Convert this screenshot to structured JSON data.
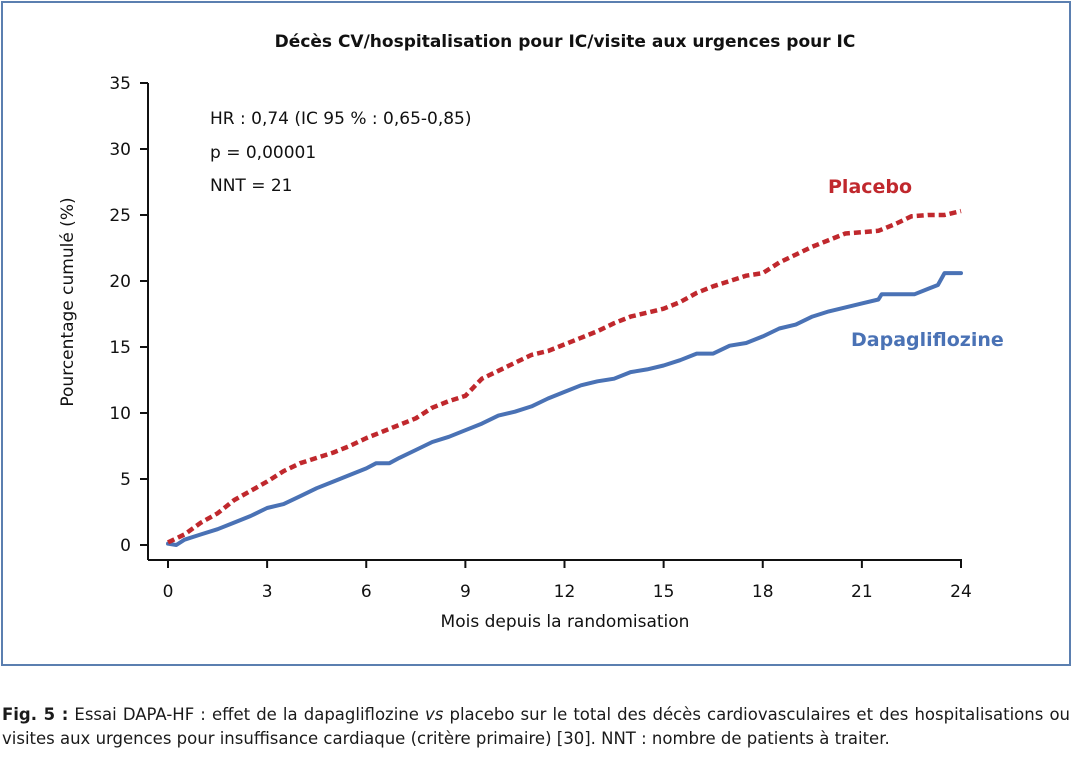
{
  "chart_data": {
    "type": "line",
    "title": "Décès CV/hospitalisation pour IC/visite aux urgences pour IC",
    "xlabel": "Mois depuis la randomisation",
    "ylabel": "Pourcentage cumulé (%)",
    "xlim": [
      0,
      24
    ],
    "ylim": [
      0,
      35
    ],
    "xticks": [
      "0",
      "3",
      "6",
      "9",
      "12",
      "15",
      "18",
      "21",
      "24"
    ],
    "yticks": [
      "0",
      "5",
      "10",
      "15",
      "20",
      "25",
      "30",
      "35"
    ],
    "grid": false,
    "legend": "inline labels",
    "annotations": [
      "HR : 0,74 (IC 95 % : 0,65-0,85)",
      "p = 0,00001",
      "NNT = 21"
    ],
    "series": [
      {
        "name": "Placebo",
        "color": "#c0282d",
        "style": "dashed",
        "points": [
          [
            0,
            0.2
          ],
          [
            0.5,
            0.8
          ],
          [
            1,
            1.7
          ],
          [
            1.5,
            2.4
          ],
          [
            2,
            3.4
          ],
          [
            2.5,
            4.1
          ],
          [
            3,
            4.8
          ],
          [
            3.5,
            5.6
          ],
          [
            4,
            6.2
          ],
          [
            4.5,
            6.6
          ],
          [
            5,
            7.0
          ],
          [
            5.5,
            7.5
          ],
          [
            6,
            8.1
          ],
          [
            6.5,
            8.6
          ],
          [
            7,
            9.1
          ],
          [
            7.5,
            9.6
          ],
          [
            8,
            10.4
          ],
          [
            8.5,
            10.9
          ],
          [
            9,
            11.3
          ],
          [
            9.5,
            12.6
          ],
          [
            10,
            13.2
          ],
          [
            10.5,
            13.8
          ],
          [
            11,
            14.4
          ],
          [
            11.5,
            14.7
          ],
          [
            12,
            15.2
          ],
          [
            12.5,
            15.7
          ],
          [
            13,
            16.2
          ],
          [
            13.5,
            16.8
          ],
          [
            14,
            17.3
          ],
          [
            14.5,
            17.6
          ],
          [
            15,
            17.9
          ],
          [
            15.5,
            18.4
          ],
          [
            16,
            19.1
          ],
          [
            16.5,
            19.6
          ],
          [
            17,
            20.0
          ],
          [
            17.5,
            20.4
          ],
          [
            18,
            20.6
          ],
          [
            18.5,
            21.4
          ],
          [
            19,
            22.0
          ],
          [
            19.5,
            22.6
          ],
          [
            20,
            23.1
          ],
          [
            20.5,
            23.6
          ],
          [
            21,
            23.7
          ],
          [
            21.5,
            23.8
          ],
          [
            22,
            24.3
          ],
          [
            22.5,
            24.9
          ],
          [
            23,
            25.0
          ],
          [
            23.5,
            25.0
          ],
          [
            24,
            25.3
          ]
        ]
      },
      {
        "name": "Dapagliflozine",
        "color": "#4a72b5",
        "style": "solid",
        "points": [
          [
            0,
            0.1
          ],
          [
            0.25,
            0.0
          ],
          [
            0.5,
            0.4
          ],
          [
            1,
            0.8
          ],
          [
            1.5,
            1.2
          ],
          [
            2,
            1.7
          ],
          [
            2.5,
            2.2
          ],
          [
            3,
            2.8
          ],
          [
            3.5,
            3.1
          ],
          [
            4,
            3.7
          ],
          [
            4.5,
            4.3
          ],
          [
            5,
            4.8
          ],
          [
            5.5,
            5.3
          ],
          [
            6,
            5.8
          ],
          [
            6.3,
            6.2
          ],
          [
            6.7,
            6.2
          ],
          [
            7,
            6.6
          ],
          [
            7.5,
            7.2
          ],
          [
            8,
            7.8
          ],
          [
            8.5,
            8.2
          ],
          [
            9,
            8.7
          ],
          [
            9.5,
            9.2
          ],
          [
            10,
            9.8
          ],
          [
            10.5,
            10.1
          ],
          [
            11,
            10.5
          ],
          [
            11.5,
            11.1
          ],
          [
            12,
            11.6
          ],
          [
            12.5,
            12.1
          ],
          [
            13,
            12.4
          ],
          [
            13.5,
            12.6
          ],
          [
            14,
            13.1
          ],
          [
            14.5,
            13.3
          ],
          [
            15,
            13.6
          ],
          [
            15.5,
            14.0
          ],
          [
            16,
            14.5
          ],
          [
            16.5,
            14.5
          ],
          [
            17,
            15.1
          ],
          [
            17.5,
            15.3
          ],
          [
            18,
            15.8
          ],
          [
            18.5,
            16.4
          ],
          [
            19,
            16.7
          ],
          [
            19.5,
            17.3
          ],
          [
            20,
            17.7
          ],
          [
            20.5,
            18.0
          ],
          [
            21,
            18.3
          ],
          [
            21.5,
            18.6
          ],
          [
            21.6,
            19.0
          ],
          [
            22,
            19.0
          ],
          [
            22.6,
            19.0
          ],
          [
            23,
            19.4
          ],
          [
            23.3,
            19.7
          ],
          [
            23.5,
            20.6
          ],
          [
            24,
            20.6
          ]
        ]
      }
    ]
  },
  "caption": {
    "fig_label": "Fig. 5 :",
    "text_before_vs": " Essai DAPA-HF : effet de la dapagliflozine ",
    "vs": "vs",
    "text_after_vs": " placebo sur le total des décès cardiovasculaires et des hospitalisations ou visites aux urgences pour insuffisance cardiaque (critère primaire) [30]. NNT : nombre de patients à traiter."
  }
}
